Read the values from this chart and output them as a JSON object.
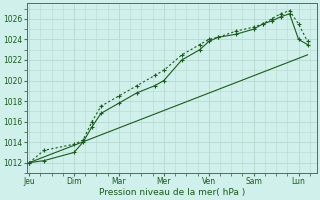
{
  "xlabel": "Pression niveau de la mer( hPa )",
  "bg_color": "#cff0eb",
  "grid_major_color": "#b8d8d0",
  "grid_minor_color": "#b8d8d0",
  "spine_color": "#507050",
  "line_color": "#1a5c1a",
  "xlabels": [
    "Jeu",
    "Dim",
    "Mar",
    "Mer",
    "Ven",
    "Sam",
    "Lun"
  ],
  "xtick_pos": [
    0,
    1,
    2,
    3,
    4,
    5,
    6
  ],
  "ylim": [
    1011.0,
    1027.5
  ],
  "yticks": [
    1012,
    1014,
    1016,
    1018,
    1020,
    1022,
    1024,
    1026
  ],
  "xlim": [
    -0.05,
    6.4
  ],
  "line1_x": [
    0,
    0.33,
    1.0,
    1.2,
    1.4,
    1.6,
    2.0,
    2.4,
    2.8,
    3.0,
    3.4,
    3.8,
    4.0,
    4.2,
    4.6,
    5.0,
    5.2,
    5.4,
    5.6,
    5.8,
    6.0,
    6.2
  ],
  "line1_y": [
    1012,
    1013.2,
    1013.8,
    1014.2,
    1016.0,
    1017.5,
    1018.5,
    1019.5,
    1020.5,
    1021.0,
    1022.5,
    1023.5,
    1024.0,
    1024.2,
    1024.8,
    1025.2,
    1025.5,
    1026.0,
    1026.5,
    1026.8,
    1025.5,
    1023.8
  ],
  "line2_x": [
    0,
    0.33,
    1.0,
    1.2,
    1.4,
    1.6,
    2.0,
    2.4,
    2.8,
    3.0,
    3.4,
    3.8,
    4.0,
    4.2,
    4.6,
    5.0,
    5.2,
    5.4,
    5.6,
    5.8,
    6.0,
    6.2
  ],
  "line2_y": [
    1012,
    1012.2,
    1013.0,
    1014.0,
    1015.5,
    1016.8,
    1017.8,
    1018.8,
    1019.5,
    1020.0,
    1022.0,
    1023.0,
    1023.8,
    1024.2,
    1024.5,
    1025.0,
    1025.5,
    1025.8,
    1026.2,
    1026.5,
    1024.0,
    1023.5
  ],
  "line3_x": [
    0,
    6.2
  ],
  "line3_y": [
    1012,
    1022.5
  ]
}
